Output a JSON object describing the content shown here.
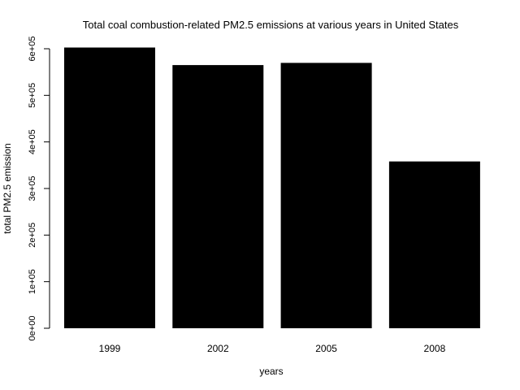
{
  "chart_data": {
    "type": "bar",
    "title": "Total coal combustion-related PM2.5 emissions at various years in United States",
    "xlabel": "years",
    "ylabel": "total PM2.5 emission",
    "categories": [
      "1999",
      "2002",
      "2005",
      "2008"
    ],
    "values": [
      602624,
      564935,
      569655,
      358084
    ],
    "ylim": [
      0,
      600000
    ],
    "yticks": [
      0,
      100000,
      200000,
      300000,
      400000,
      500000,
      600000
    ],
    "ytick_labels": [
      "0e+00",
      "1e+05",
      "2e+05",
      "3e+05",
      "4e+05",
      "5e+05",
      "6e+05"
    ],
    "grid": false,
    "legend": "none",
    "bar_color": "#000000"
  }
}
